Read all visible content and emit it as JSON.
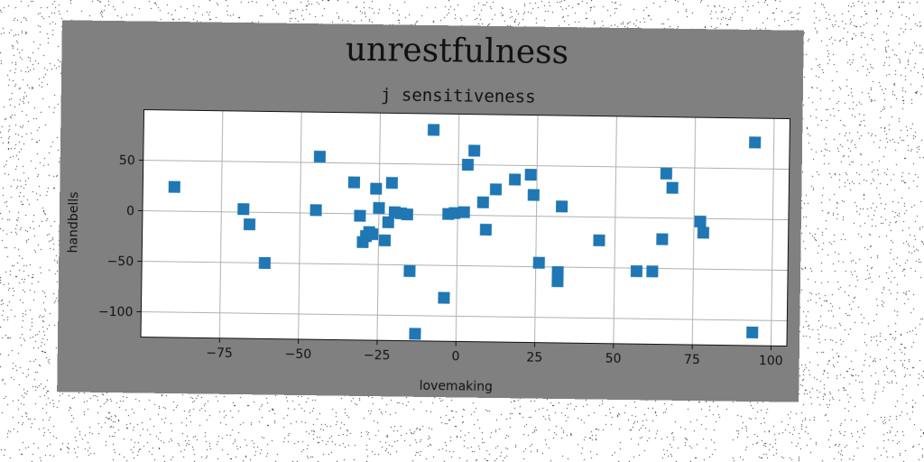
{
  "chart_data": {
    "type": "scatter",
    "suptitle": "unrestfulness",
    "title": "j sensitiveness",
    "xlabel": "lovemaking",
    "ylabel": "handbells",
    "xlim": [
      -100,
      105
    ],
    "ylim": [
      -125,
      100
    ],
    "xticks": [
      -75,
      -50,
      -25,
      0,
      25,
      50,
      75,
      100
    ],
    "xtick_labels": [
      "−75",
      "−50",
      "−25",
      "0",
      "25",
      "50",
      "75",
      "100"
    ],
    "yticks": [
      -100,
      -50,
      0,
      50
    ],
    "ytick_labels": [
      "−100",
      "−50",
      "0",
      "50"
    ],
    "grid": true,
    "marker": "square",
    "colors": {
      "marker": "#1f77b4",
      "figure_background": "#808080",
      "axes_background": "#ffffff",
      "grid": "#b0b0b0"
    },
    "series": [
      {
        "points": [
          [
            -90,
            24
          ],
          [
            -68,
            3
          ],
          [
            -66,
            -12
          ],
          [
            -61,
            -50
          ],
          [
            -44,
            56
          ],
          [
            -45,
            3
          ],
          [
            -33,
            31
          ],
          [
            -31,
            -2
          ],
          [
            -30,
            -28
          ],
          [
            -29,
            -22
          ],
          [
            -28,
            -18
          ],
          [
            -27,
            -20
          ],
          [
            -26,
            25
          ],
          [
            -25,
            6
          ],
          [
            -23,
            -26
          ],
          [
            -21,
            31
          ],
          [
            -22,
            -8
          ],
          [
            -20,
            2
          ],
          [
            -18,
            1
          ],
          [
            -16,
            0
          ],
          [
            -15,
            -56
          ],
          [
            -13,
            -118
          ],
          [
            -8,
            84
          ],
          [
            -4,
            -82
          ],
          [
            -3,
            1
          ],
          [
            -1,
            2
          ],
          [
            2,
            3
          ],
          [
            3,
            50
          ],
          [
            5,
            64
          ],
          [
            8,
            13
          ],
          [
            9,
            -14
          ],
          [
            12,
            26
          ],
          [
            18,
            36
          ],
          [
            23,
            41
          ],
          [
            24,
            21
          ],
          [
            26,
            -46
          ],
          [
            32,
            -55
          ],
          [
            32,
            -64
          ],
          [
            33,
            10
          ],
          [
            45,
            -23
          ],
          [
            57,
            -53
          ],
          [
            62,
            -53
          ],
          [
            66,
            44
          ],
          [
            65,
            -21
          ],
          [
            68,
            30
          ],
          [
            77,
            -3
          ],
          [
            78,
            -14
          ],
          [
            94,
            76
          ],
          [
            94,
            -112
          ]
        ]
      }
    ]
  }
}
